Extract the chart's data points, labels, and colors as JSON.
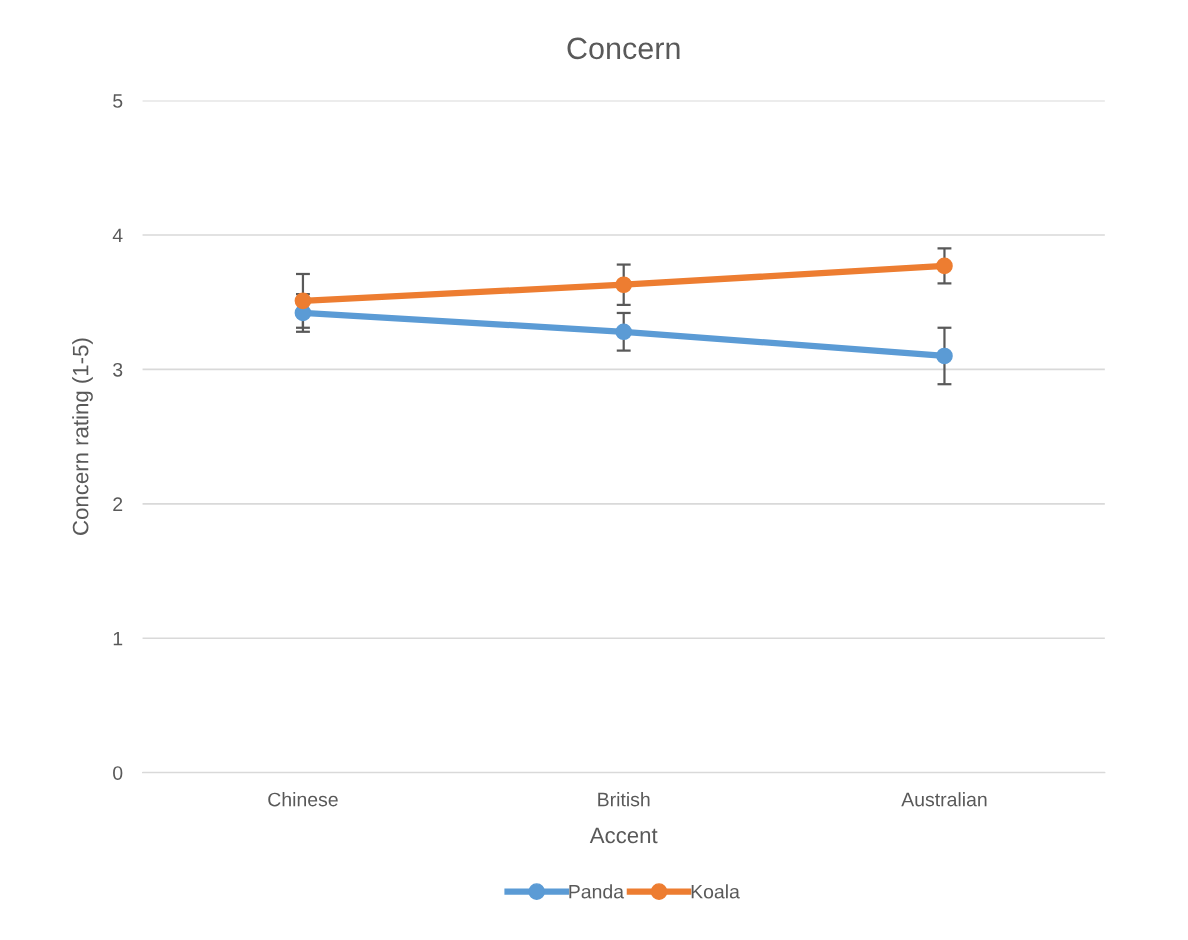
{
  "chart_data": {
    "type": "line",
    "title": "Concern",
    "xlabel": "Accent",
    "ylabel": "Concern rating (1-5)",
    "categories": [
      "Chinese",
      "British",
      "Australian"
    ],
    "series": [
      {
        "name": "Panda",
        "color": "#5b9bd5",
        "values": [
          3.42,
          3.28,
          3.1
        ],
        "errors": [
          0.14,
          0.14,
          0.21
        ]
      },
      {
        "name": "Koala",
        "color": "#ed7d31",
        "values": [
          3.51,
          3.63,
          3.77
        ],
        "errors": [
          0.2,
          0.15,
          0.13
        ]
      }
    ],
    "ylim": [
      0,
      5
    ],
    "yticks": [
      0,
      1,
      2,
      3,
      4,
      5
    ],
    "grid": "y",
    "legend": "bottom",
    "marker": "circle",
    "line_style": "solid"
  }
}
